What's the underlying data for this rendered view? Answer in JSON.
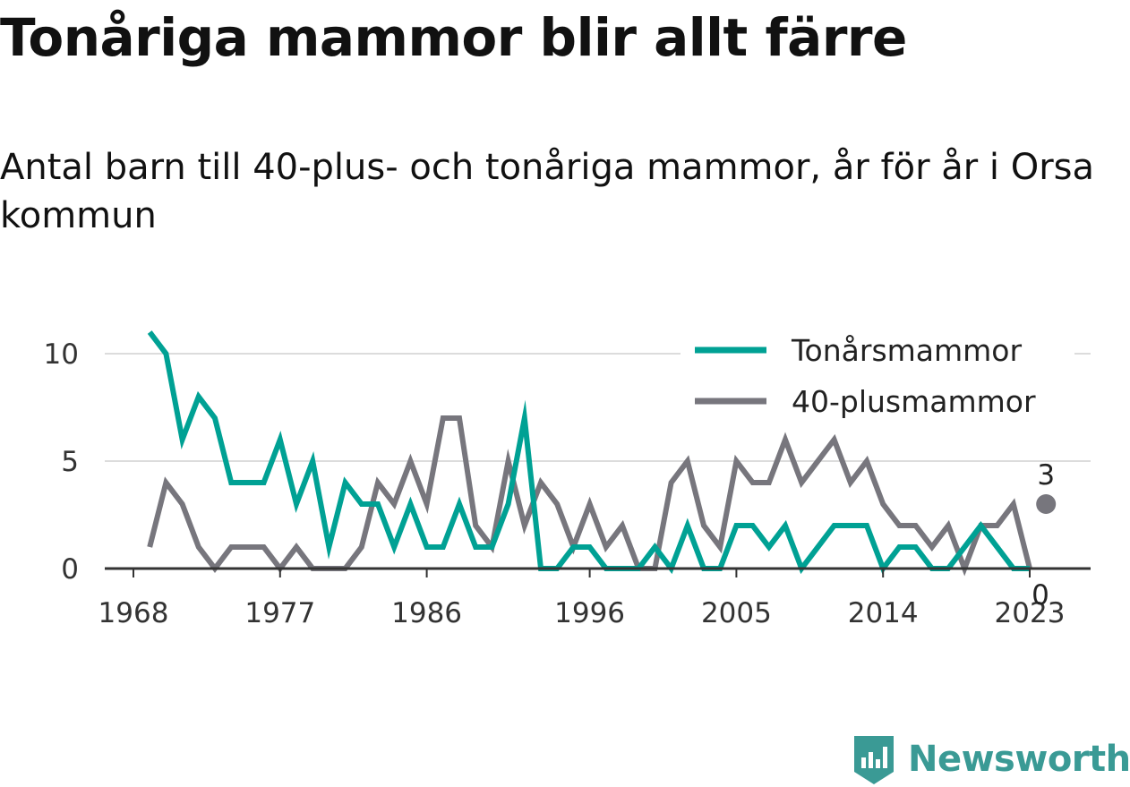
{
  "title": "Tonåriga mammor blir allt färre",
  "subtitle": "Antal barn till 40-plus- och tonåriga mammor, år för år i Orsa kommun",
  "brand": "Newsworthy",
  "chart_data": {
    "type": "line",
    "x_ticks": [
      1968,
      1977,
      1986,
      1996,
      2005,
      2014,
      2023
    ],
    "y_ticks": [
      0,
      5,
      10
    ],
    "xlim": [
      1967,
      2027
    ],
    "ylim": [
      0,
      11.5
    ],
    "grid": true,
    "legend_position": "top-right",
    "x": [
      1969,
      1970,
      1971,
      1972,
      1973,
      1974,
      1975,
      1976,
      1977,
      1978,
      1979,
      1980,
      1981,
      1982,
      1983,
      1984,
      1985,
      1986,
      1987,
      1988,
      1989,
      1990,
      1991,
      1992,
      1993,
      1994,
      1995,
      1996,
      1997,
      1998,
      1999,
      2000,
      2001,
      2002,
      2003,
      2004,
      2005,
      2006,
      2007,
      2008,
      2009,
      2010,
      2011,
      2012,
      2013,
      2014,
      2015,
      2016,
      2017,
      2018,
      2019,
      2020,
      2021,
      2022,
      2023
    ],
    "series": [
      {
        "name": "Tonårsmammor",
        "color": "#00a194",
        "values": [
          11,
          10,
          6,
          8,
          7,
          4,
          4,
          4,
          6,
          3,
          5,
          1,
          4,
          3,
          3,
          1,
          3,
          1,
          1,
          3,
          1,
          1,
          3,
          7,
          0,
          0,
          1,
          1,
          0,
          0,
          0,
          1,
          0,
          2,
          0,
          0,
          2,
          2,
          1,
          2,
          0,
          1,
          2,
          2,
          2,
          0,
          1,
          1,
          0,
          0,
          1,
          2,
          1,
          0,
          0
        ],
        "end_label": "0"
      },
      {
        "name": "40-plusmammor",
        "color": "#77767d",
        "values": [
          1,
          4,
          3,
          1,
          0,
          1,
          1,
          1,
          0,
          1,
          0,
          0,
          0,
          1,
          4,
          3,
          5,
          3,
          7,
          7,
          2,
          1,
          5,
          2,
          4,
          3,
          1,
          3,
          1,
          2,
          0,
          0,
          4,
          5,
          2,
          1,
          5,
          4,
          4,
          6,
          4,
          5,
          6,
          4,
          5,
          3,
          2,
          2,
          1,
          2,
          0,
          2,
          2,
          3,
          0
        ],
        "end_label": "3"
      }
    ],
    "end_marker": {
      "series": "40-plusmammor",
      "x": 2024,
      "y": 3
    }
  }
}
